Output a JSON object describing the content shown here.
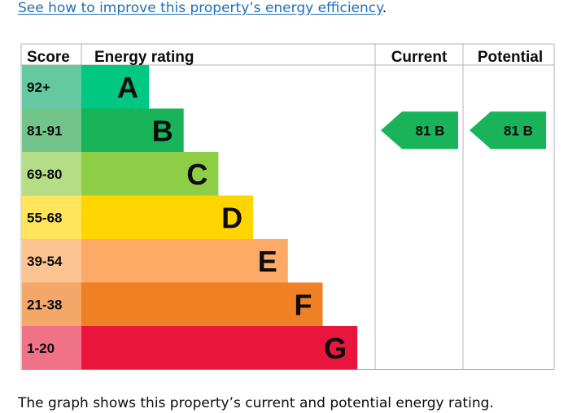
{
  "link": {
    "text": "See how to improve this property’s energy efficiency",
    "suffix": "."
  },
  "chart_data": {
    "type": "table",
    "headers": {
      "score": "Score",
      "rating": "Energy rating",
      "current": "Current",
      "potential": "Potential"
    },
    "bands": [
      {
        "score": "92+",
        "letter": "A",
        "color": "#00c781",
        "score_color": "#64c9a0"
      },
      {
        "score": "81-91",
        "letter": "B",
        "color": "#19b459",
        "score_color": "#72c48a"
      },
      {
        "score": "69-80",
        "letter": "C",
        "color": "#8dce46",
        "score_color": "#b5dd85"
      },
      {
        "score": "55-68",
        "letter": "D",
        "color": "#ffd500",
        "score_color": "#ffe45c"
      },
      {
        "score": "39-54",
        "letter": "E",
        "color": "#fcaa65",
        "score_color": "#fcc393"
      },
      {
        "score": "21-38",
        "letter": "F",
        "color": "#ef8023",
        "score_color": "#f3a86a"
      },
      {
        "score": "1-20",
        "letter": "G",
        "color": "#e9153b",
        "score_color": "#f07287"
      }
    ],
    "current": {
      "value": 81,
      "band": "B",
      "label": "81  B",
      "color": "#19b459"
    },
    "potential": {
      "value": 81,
      "band": "B",
      "label": "81  B",
      "color": "#19b459"
    }
  },
  "footer": {
    "text": "The graph shows this property’s current and potential energy rating."
  }
}
